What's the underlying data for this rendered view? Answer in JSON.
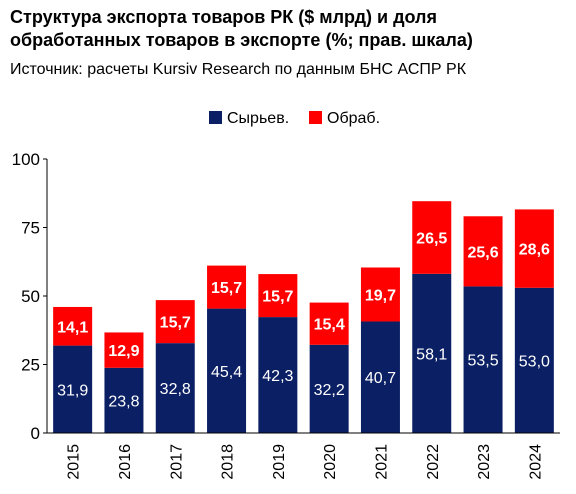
{
  "header": {
    "title_line1": "Структура экспорта товаров РК ($ млрд) и доля",
    "title_line2": "обработанных товаров в экспорте (%; прав. шкала)",
    "source": "Источник: расчеты Kursiv Research по данным БНС АСПР РК"
  },
  "chart_data": {
    "type": "bar",
    "stacked": true,
    "categories": [
      "2015",
      "2016",
      "2017",
      "2018",
      "2019",
      "2020",
      "2021",
      "2022",
      "2023",
      "2024"
    ],
    "series": [
      {
        "name": "Сырьев.",
        "color": "#0b1f64",
        "label_color": "#ffffff",
        "values": [
          31.9,
          23.8,
          32.8,
          45.4,
          42.3,
          32.2,
          40.7,
          58.1,
          53.5,
          53.0
        ],
        "labels": [
          "31,9",
          "23,8",
          "32,8",
          "45,4",
          "42,3",
          "32,2",
          "40,7",
          "58,1",
          "53,5",
          "53,0"
        ]
      },
      {
        "name": "Обраб.",
        "color": "#ff0000",
        "label_color": "#ffffff",
        "values": [
          14.1,
          12.9,
          15.7,
          15.7,
          15.7,
          15.4,
          19.7,
          26.5,
          25.6,
          28.6
        ],
        "labels": [
          "14,1",
          "12,9",
          "15,7",
          "15,7",
          "15,7",
          "15,4",
          "19,7",
          "26,5",
          "25,6",
          "28,6"
        ]
      }
    ],
    "y_ticks": [
      "0",
      "25",
      "50",
      "75",
      "100"
    ],
    "ylim": [
      0,
      100
    ],
    "grid": false,
    "legend_position": "top-center"
  }
}
